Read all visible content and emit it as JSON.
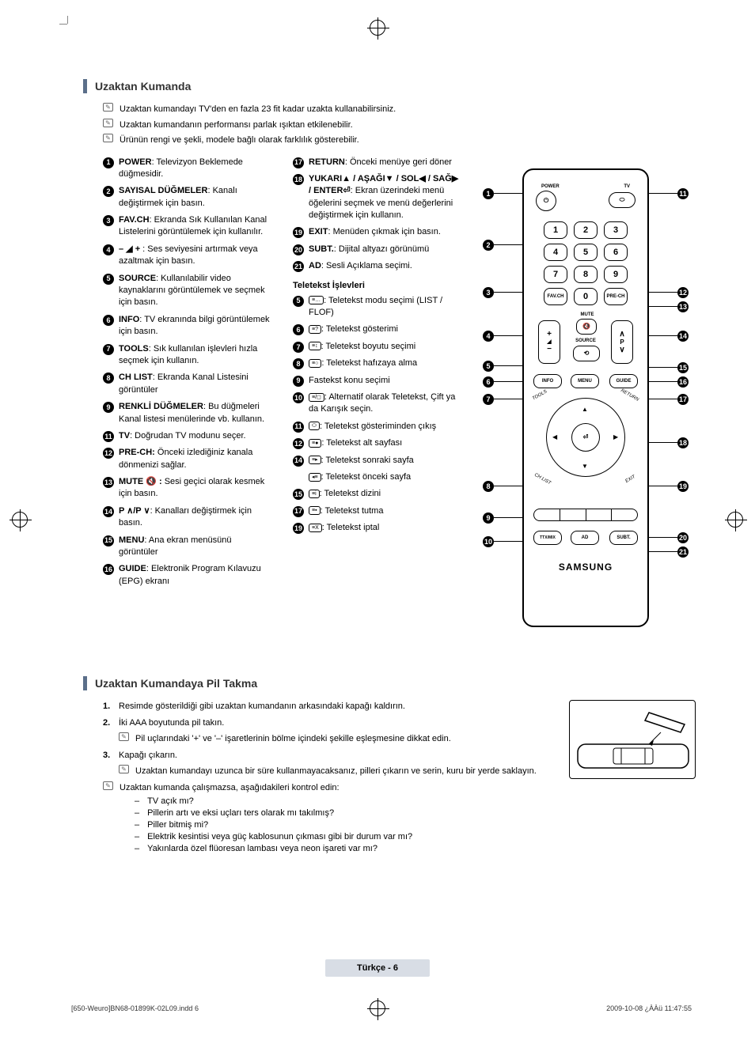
{
  "section1": {
    "title": "Uzaktan Kumanda",
    "notes": [
      "Uzaktan kumandayı TV'den en fazla 23 fit kadar uzakta kullanabilirsiniz.",
      "Uzaktan kumandanın performansı parlak ışıktan etkilenebilir.",
      "Ürünün rengi ve şekli, modele bağlı olarak farklılık gösterebilir."
    ],
    "col_left": [
      {
        "n": "1",
        "b": "POWER",
        "t": ": Televizyon Beklemede düğmesidir."
      },
      {
        "n": "2",
        "b": "SAYISAL DÜĞMELER",
        "t": ":  Kanalı değiştirmek için basın."
      },
      {
        "n": "3",
        "b": "FAV.CH",
        "t": ": Ekranda Sık Kullanılan Kanal Listelerini görüntülemek için kullanılır."
      },
      {
        "n": "4",
        "b": "– ◢ +",
        "t": " : Ses seviyesini artırmak veya azaltmak için basın."
      },
      {
        "n": "5",
        "b": "SOURCE",
        "t": ": Kullanılabilir video kaynaklarını görüntülemek ve seçmek için basın."
      },
      {
        "n": "6",
        "b": "INFO",
        "t": ": TV ekranında bilgi görüntülemek için basın."
      },
      {
        "n": "7",
        "b": "TOOLS",
        "t": ": Sık kullanılan işlevleri hızla seçmek için kullanın."
      },
      {
        "n": "8",
        "b": "CH LIST",
        "t": ": Ekranda Kanal Listesini görüntüler"
      },
      {
        "n": "9",
        "b": "RENKLİ DÜĞMELER",
        "t": ": Bu düğmeleri Kanal listesi menülerinde vb. kullanın."
      },
      {
        "n": "11",
        "b": "TV",
        "t": ": Doğrudan TV modunu seçer."
      },
      {
        "n": "12",
        "b": "PRE-CH:",
        "t": " Önceki izlediğiniz kanala dönmenizi sağlar."
      },
      {
        "n": "13",
        "b": "MUTE 🔇 :",
        "t": " Sesi geçici olarak kesmek için basın."
      },
      {
        "n": "14",
        "b": "P ∧/P ∨",
        "t": ": Kanalları değiştirmek için basın."
      },
      {
        "n": "15",
        "b": "MENU",
        "t": ": Ana ekran menüsünü görüntüler"
      },
      {
        "n": "16",
        "b": "GUIDE",
        "t": ": Elektronik Program Kılavuzu (EPG) ekranı"
      }
    ],
    "col_mid_a": [
      {
        "n": "17",
        "b": "RETURN",
        "t": ": Önceki menüye geri döner"
      },
      {
        "n": "18",
        "b": "YUKARI▲ / AŞAĞI▼ / SOL◀ / SAĞ▶ / ENTER⏎",
        "t": ": Ekran üzerindeki menü öğelerini seçmek ve menü değerlerini değiştirmek için kullanın."
      },
      {
        "n": "19",
        "b": "EXIT",
        "t": ": Menüden çıkmak için basın."
      },
      {
        "n": "20",
        "b": "SUBT.",
        "t": ": Dijital altyazı görünümü"
      },
      {
        "n": "21",
        "b": "AD",
        "t": ": Sesli Açıklama seçimi."
      }
    ],
    "teletext_header": "Teletekst İşlevleri",
    "col_mid_b": [
      {
        "n": "5",
        "icon": "≡…",
        "t": ": Teletekst modu seçimi (LIST / FLOF)"
      },
      {
        "n": "6",
        "icon": "≡?",
        "t": ": Teletekst gösterimi"
      },
      {
        "n": "7",
        "icon": "≡↕",
        "t": ": Teletekst boyutu seçimi"
      },
      {
        "n": "8",
        "icon": "≡○",
        "t": ": Teletekst hafızaya alma"
      },
      {
        "n": "9",
        "icon": "",
        "t": "Fastekst konu seçimi"
      },
      {
        "n": "10",
        "icon": "≡/◻",
        "t": ": Alternatif olarak Teletekst, Çift ya da Karışık seçin."
      },
      {
        "n": "11",
        "icon": "⬭",
        "t": ": Teletekst gösteriminden çıkış"
      },
      {
        "n": "12",
        "icon": "≡●",
        "t": ": Teletekst alt sayfası"
      },
      {
        "n": "14",
        "icon": "≡▸",
        "t": ": Teletekst sonraki sayfa"
      },
      {
        "n": "",
        "icon": "◂≡",
        "t": ": Teletekst önceki sayfa"
      },
      {
        "n": "15",
        "icon": "≡i",
        "t": ": Teletekst dizini"
      },
      {
        "n": "17",
        "icon": "≡▪",
        "t": ": Teletekst tutma"
      },
      {
        "n": "19",
        "icon": "≡X",
        "t": ": Teletekst iptal"
      }
    ],
    "remote": {
      "power_label": "POWER",
      "tv_label": "TV",
      "favch": "FAV.CH",
      "prech": "PRE-CH",
      "mute": "MUTE",
      "source": "SOURCE",
      "info": "INFO",
      "menu": "MENU",
      "guide": "GUIDE",
      "ttxmix": "TTX/MIX",
      "ad": "AD",
      "subt": "SUBT.",
      "brand": "SAMSUNG",
      "p": "P"
    }
  },
  "section2": {
    "title": "Uzaktan Kumandaya Pil Takma",
    "steps": [
      {
        "n": "1.",
        "t": "Resimde gösterildiği gibi uzaktan kumandanın arkasındaki kapağı kaldırın."
      },
      {
        "n": "2.",
        "t": "İki AAA boyutunda pil takın."
      },
      {
        "n": "3.",
        "t": "Kapağı çıkarın."
      }
    ],
    "step2_note": "Pil uçlarındaki '+' ve '–' işaretlerinin bölme içindeki şekille eşleşmesine dikkat edin.",
    "step3_note": "Uzaktan kumandayı uzunca bir süre kullanmayacaksanız, pilleri çıkarın ve serin, kuru bir yerde saklayın.",
    "check_intro": "Uzaktan kumanda çalışmazsa, aşağıdakileri kontrol edin:",
    "checks": [
      "TV açık mı?",
      "Pillerin artı ve eksi uçları ters olarak mı takılmış?",
      "Piller bitmiş mi?",
      "Elektrik kesintisi veya güç kablosunun çıkması gibi bir durum var mı?",
      "Yakınlarda özel flüoresan lambası veya neon işareti var mı?"
    ]
  },
  "footer": {
    "page": "Türkçe - 6",
    "doc_left": "[650-Weuro]BN68-01899K-02L09.indd   6",
    "doc_right": "2009-10-08   ¿ÀÀü 11:47:55"
  }
}
